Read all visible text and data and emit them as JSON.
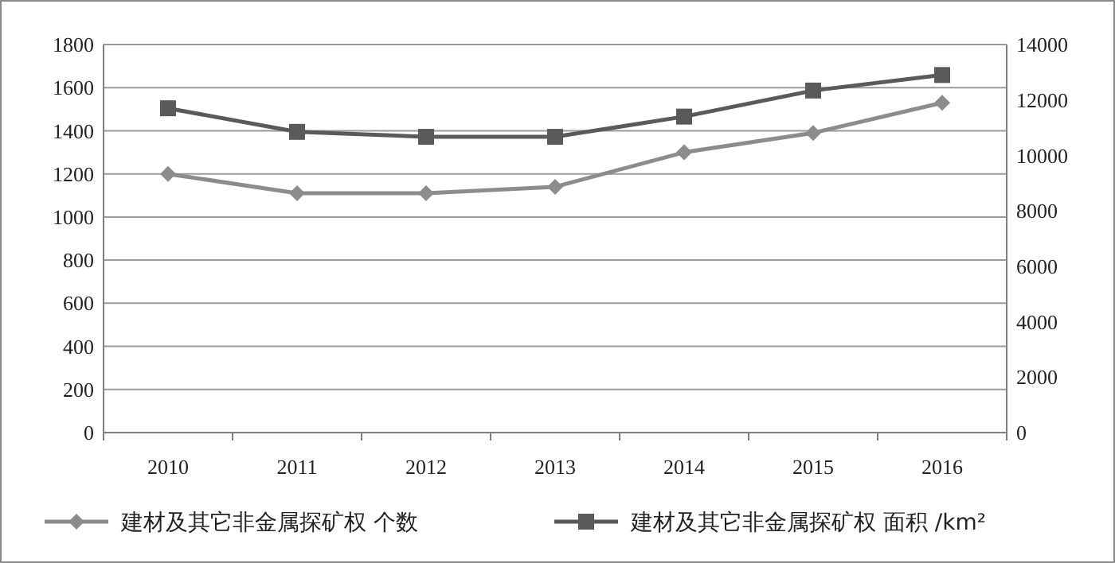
{
  "chart_data": {
    "type": "line",
    "categories": [
      "2010",
      "2011",
      "2012",
      "2013",
      "2014",
      "2015",
      "2016"
    ],
    "series": [
      {
        "name": "建材及其它非金属探矿权 个数",
        "color": "#8c8c8c",
        "marker": "diamond",
        "values": [
          1200,
          1110,
          1110,
          1140,
          1300,
          1390,
          1530
        ]
      },
      {
        "name": "建材及其它非金属探矿权 面积 /km²",
        "color": "#5a5a5a",
        "marker": "square",
        "axis": "y2",
        "values": [
          11700,
          10850,
          10670,
          10670,
          11400,
          12340,
          12900
        ]
      }
    ],
    "ylim": [
      0,
      1800
    ],
    "yticks": [
      0,
      200,
      400,
      600,
      800,
      1000,
      1200,
      1400,
      1600,
      1800
    ],
    "y2lim": [
      0,
      14000
    ],
    "y2ticks": [
      0,
      2000,
      4000,
      6000,
      8000,
      10000,
      12000,
      14000
    ],
    "grid": "y",
    "legend": "bottom",
    "line_style": "solid"
  }
}
